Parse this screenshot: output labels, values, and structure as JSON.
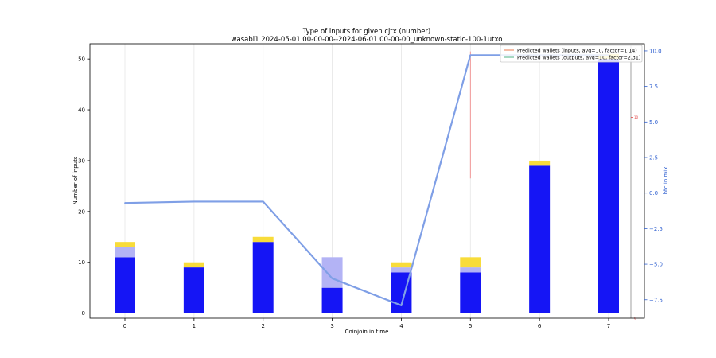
{
  "chart_data": {
    "type": "bar",
    "title": "Type of inputs for given cjtx (number)",
    "subtitle": "wasabi1 2024-05-01 00-00-00--2024-06-01 00-00-00_unknown-static-100-1utxo",
    "xlabel": "Coinjoin in time",
    "ylabel": "Number of inputs",
    "y2label": "btc in mix",
    "categories": [
      "0",
      "1",
      "2",
      "3",
      "4",
      "5",
      "6",
      "7"
    ],
    "ylim": [
      -1,
      53
    ],
    "yticks": [
      0,
      10,
      20,
      30,
      40,
      50
    ],
    "y2lim": [
      -8.8,
      10.5
    ],
    "y2ticks": [
      -7.5,
      -5.0,
      -2.5,
      0.0,
      2.5,
      5.0,
      7.5,
      10.0
    ],
    "series": [
      {
        "color": "#1515f5",
        "values": [
          11,
          9,
          14,
          5,
          8,
          8,
          29,
          50
        ]
      },
      {
        "color": "#b3b3f5",
        "values": [
          2,
          0,
          0,
          6,
          1,
          1,
          0,
          0
        ]
      },
      {
        "color": "#f8dc3a",
        "values": [
          1,
          1,
          1,
          0,
          1,
          2,
          1,
          1
        ]
      }
    ],
    "line": {
      "color": "#7f9fe6",
      "values": [
        -0.7,
        -0.6,
        -0.6,
        -6.0,
        -7.9,
        9.7,
        9.7,
        9.7
      ]
    },
    "marker": {
      "color": "#f08080",
      "x": 5,
      "y_from": 26.5,
      "y_to": 51.5
    },
    "right_scale": {
      "color": "#e04040",
      "tick_label": "10",
      "tick_y": 38.5,
      "bottom_label": "0"
    },
    "legend": {
      "placement": "top-right",
      "entries": [
        {
          "label": "Predicted wallets (inputs, avg=10, factor=1.14)",
          "color": "#f0a080"
        },
        {
          "label": "Predicted wallets (outputs, avg=10, factor=2.31)",
          "color": "#80c8a8"
        }
      ]
    },
    "grid": "x"
  }
}
